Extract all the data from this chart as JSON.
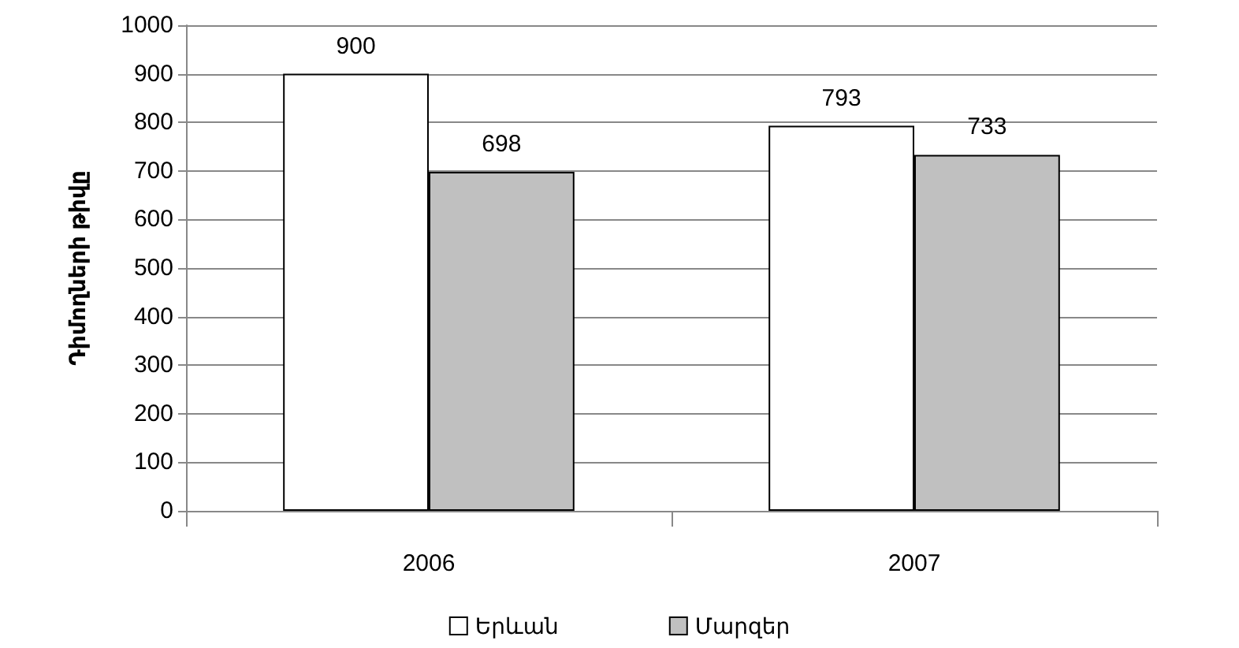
{
  "chart_data": {
    "type": "bar",
    "ylabel": "Դիմողների թիվը",
    "categories": [
      "2006",
      "2007"
    ],
    "series": [
      {
        "name": "Երևան",
        "color": "#ffffff",
        "values": [
          900,
          793
        ]
      },
      {
        "name": "Մարզեր",
        "color": "#c0c0c0",
        "values": [
          698,
          733
        ]
      }
    ],
    "ylim": [
      0,
      1000
    ],
    "yticks": [
      0,
      100,
      200,
      300,
      400,
      500,
      600,
      700,
      800,
      900,
      1000
    ],
    "grid": "y",
    "legend": "bottom",
    "data_labels": true
  }
}
